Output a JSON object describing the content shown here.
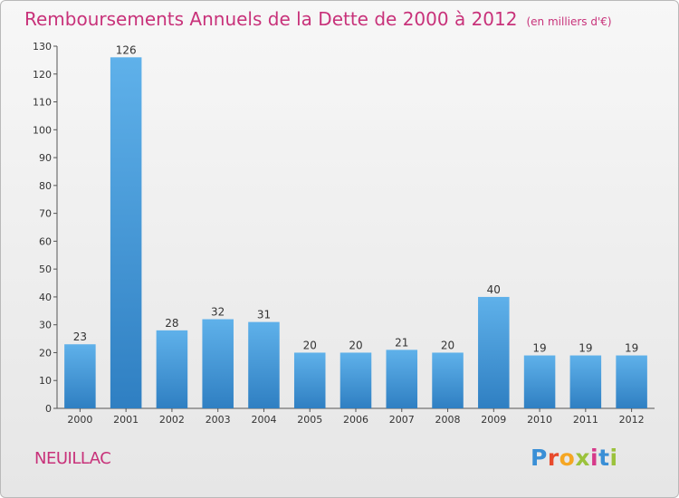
{
  "title": "Remboursements Annuels de la Dette de 2000 à 2012",
  "unit": "(en milliers d'€)",
  "commune": "NEUILLAC",
  "logo": "Proxiti",
  "colors": {
    "title": "#c8327a",
    "bar_top": "#5fb1ea",
    "bar_bottom": "#2f7fc2"
  },
  "chart_data": {
    "type": "bar",
    "title": "Remboursements Annuels de la Dette de 2000 à 2012",
    "subtitle": "(en milliers d'€)",
    "categories": [
      "2000",
      "2001",
      "2002",
      "2003",
      "2004",
      "2005",
      "2006",
      "2007",
      "2008",
      "2009",
      "2010",
      "2011",
      "2012"
    ],
    "values": [
      23,
      126,
      28,
      32,
      31,
      20,
      20,
      21,
      20,
      40,
      19,
      19,
      19
    ],
    "ylim": [
      0,
      130
    ],
    "yticks": [
      0,
      10,
      20,
      30,
      40,
      50,
      60,
      70,
      80,
      90,
      100,
      110,
      120,
      130
    ],
    "grid": false
  }
}
